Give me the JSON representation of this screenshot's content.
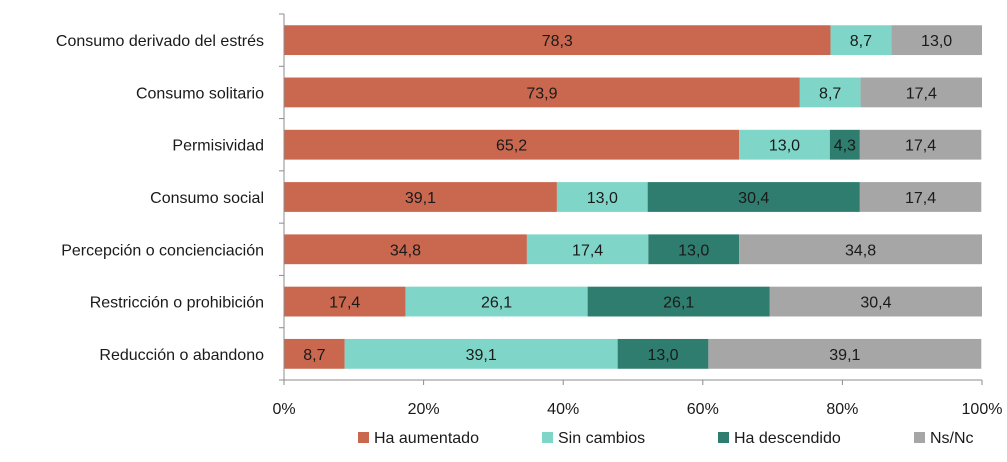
{
  "chart_data": {
    "type": "bar",
    "orientation": "horizontal",
    "stacked": true,
    "categories": [
      "Consumo derivado del estrés",
      "Consumo solitario",
      "Permisividad",
      "Consumo social",
      "Percepción o concienciación",
      "Restricción o prohibición",
      "Reducción o abandono"
    ],
    "series": [
      {
        "name": "Ha aumentado",
        "color": "#C9674F",
        "values": [
          78.3,
          73.9,
          65.2,
          39.1,
          34.8,
          17.4,
          8.7
        ],
        "labels": [
          "78,3",
          "73,9",
          "65,2",
          "39,1",
          "34,8",
          "17,4",
          "8,7"
        ]
      },
      {
        "name": "Sin cambios",
        "color": "#7FD6C8",
        "values": [
          8.7,
          8.7,
          13.0,
          13.0,
          17.4,
          26.1,
          39.1
        ],
        "labels": [
          "8,7",
          "8,7",
          "13,0",
          "13,0",
          "17,4",
          "26,1",
          "39,1"
        ]
      },
      {
        "name": "Ha descendido",
        "color": "#2E7D6E",
        "values": [
          0,
          0,
          4.3,
          30.4,
          13.0,
          26.1,
          13.0
        ],
        "labels": [
          "",
          "",
          "4,3",
          "30,4",
          "13,0",
          "26,1",
          "13,0"
        ]
      },
      {
        "name": "Ns/Nc",
        "color": "#A6A6A6",
        "values": [
          13.0,
          17.4,
          17.4,
          17.4,
          34.8,
          30.4,
          39.1
        ],
        "labels": [
          "13,0",
          "17,4",
          "17,4",
          "17,4",
          "34,8",
          "30,4",
          "39,1"
        ]
      }
    ],
    "xlim": [
      0,
      100
    ],
    "xticks": [
      "0%",
      "20%",
      "40%",
      "60%",
      "80%",
      "100%"
    ],
    "legend_position": "bottom",
    "grid": false
  }
}
